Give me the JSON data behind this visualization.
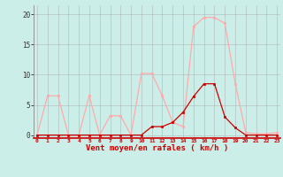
{
  "x": [
    0,
    1,
    2,
    3,
    4,
    5,
    6,
    7,
    8,
    9,
    10,
    11,
    12,
    13,
    14,
    15,
    16,
    17,
    18,
    19,
    20,
    21,
    22,
    23
  ],
  "rafales": [
    0,
    6.5,
    6.5,
    0,
    0,
    6.5,
    0,
    3.2,
    3.2,
    0,
    10.2,
    10.2,
    6.5,
    2.1,
    1.4,
    18,
    19.5,
    19.5,
    18.5,
    8.5,
    0.4,
    0.2,
    0.2,
    0.4
  ],
  "moyen": [
    0,
    0,
    0,
    0,
    0,
    0,
    0,
    0,
    0,
    0,
    0,
    1.4,
    1.4,
    2.1,
    3.8,
    6.4,
    8.5,
    8.5,
    3,
    1.2,
    0,
    0,
    0,
    0
  ],
  "color_rafales": "#ffaaaa",
  "color_moyen": "#cc0000",
  "bg_color": "#cceee8",
  "grid_color": "#aaaaaa",
  "xlabel": "Vent moyen/en rafales ( km/h )",
  "yticks": [
    0,
    5,
    10,
    15,
    20
  ],
  "xlim": [
    -0.3,
    23.3
  ],
  "ylim": [
    -0.5,
    21.5
  ]
}
